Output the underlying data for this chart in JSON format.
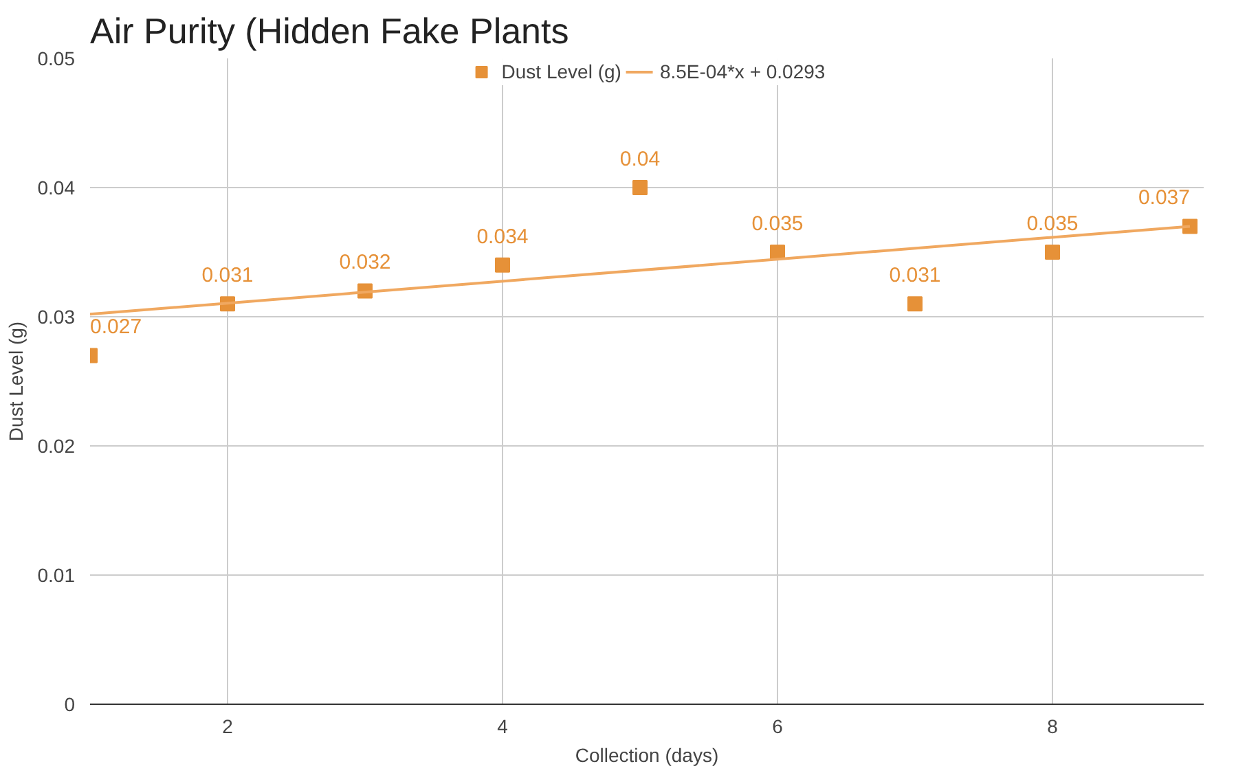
{
  "chart_data": {
    "type": "scatter",
    "title": "Air Purity (Hidden Fake Plants",
    "xlabel": "Collection (days)",
    "ylabel": "Dust Level (g)",
    "x": [
      1,
      2,
      3,
      4,
      5,
      6,
      7,
      8,
      9
    ],
    "series": [
      {
        "name": "Dust Level (g)",
        "color": "#e69138",
        "marker": "square",
        "values": [
          0.027,
          0.031,
          0.032,
          0.034,
          0.04,
          0.035,
          0.031,
          0.035,
          0.037
        ],
        "value_labels": [
          "0.027",
          "0.031",
          "0.032",
          "0.034",
          "0.04",
          "0.035",
          "0.031",
          "0.035",
          "0.037"
        ]
      },
      {
        "name": "8.5E-04*x + 0.0293",
        "type": "line",
        "color": "#f0a860",
        "x": [
          1,
          9
        ],
        "values": [
          0.0302,
          0.037
        ]
      }
    ],
    "xlim": [
      1,
      9.1
    ],
    "xticks": [
      2,
      4,
      6,
      8
    ],
    "ylim": [
      0,
      0.05
    ],
    "yticks": [
      0,
      0.01,
      0.02,
      0.03,
      0.04,
      0.05
    ],
    "grid": true,
    "legend": "top"
  }
}
